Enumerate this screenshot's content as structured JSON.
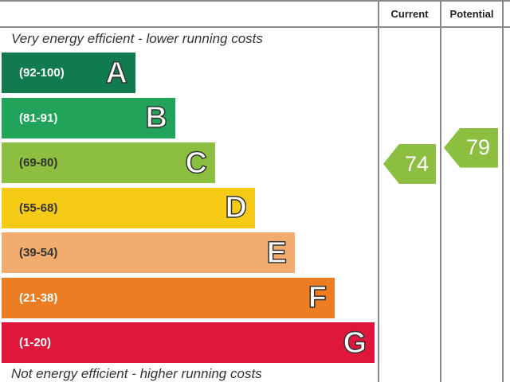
{
  "headers": {
    "current": "Current",
    "potential": "Potential"
  },
  "captions": {
    "top": "Very energy efficient - lower running costs",
    "bottom": "Not energy efficient - higher running costs"
  },
  "chart_data": {
    "type": "bar",
    "categories": [
      "A",
      "B",
      "C",
      "D",
      "E",
      "F",
      "G"
    ],
    "ranges": [
      "(92-100)",
      "(81-91)",
      "(69-80)",
      "(55-68)",
      "(39-54)",
      "(21-38)",
      "(1-20)"
    ],
    "colors": [
      "#117a4f",
      "#21a35a",
      "#8cbf3f",
      "#f6cb15",
      "#f2ac6e",
      "#ec7d22",
      "#e0173a"
    ],
    "range_text_colors": [
      "#ffffff",
      "#ffffff",
      "#333333",
      "#333333",
      "#333333",
      "#ffffff",
      "#ffffff"
    ],
    "current": {
      "value": 74,
      "band": "C",
      "color": "#8cbf3f"
    },
    "potential": {
      "value": 79,
      "band": "C",
      "color": "#8cbf3f"
    }
  }
}
